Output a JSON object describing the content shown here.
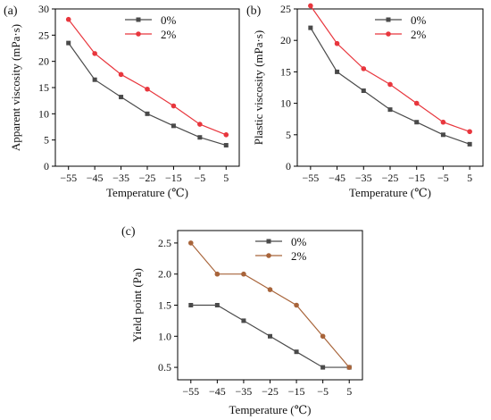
{
  "chart_data": [
    {
      "type": "line",
      "panel_label": "(a)",
      "x": [
        -55,
        -45,
        -35,
        -25,
        -15,
        -5,
        5
      ],
      "xticks": [
        "−55",
        "−45",
        "−35",
        "−25",
        "−15",
        "−5",
        "5"
      ],
      "xlabel": "Temperature (℃)",
      "ylabel": "Apparent viscosity (mPa·s)",
      "ylim": [
        0,
        30
      ],
      "yticks": [
        "0",
        "5",
        "10",
        "15",
        "20",
        "25",
        "30"
      ],
      "legend_position": "top-right",
      "series": [
        {
          "name": "0%",
          "color": "#4a4a4a",
          "marker": "square",
          "values": [
            23.5,
            16.5,
            13.2,
            10.0,
            7.7,
            5.5,
            4.0
          ]
        },
        {
          "name": "2%",
          "color": "#e8363d",
          "marker": "circle",
          "values": [
            28.0,
            21.5,
            17.5,
            14.7,
            11.5,
            8.0,
            6.0
          ]
        }
      ]
    },
    {
      "type": "line",
      "panel_label": "(b)",
      "x": [
        -55,
        -45,
        -35,
        -25,
        -15,
        -5,
        5
      ],
      "xticks": [
        "−55",
        "−45",
        "−35",
        "−25",
        "−15",
        "−5",
        "5"
      ],
      "xlabel": "Temperature (℃)",
      "ylabel": "Plastic viscosity (mPa·s)",
      "ylim": [
        0,
        25
      ],
      "yticks": [
        "0",
        "5",
        "10",
        "15",
        "20",
        "25"
      ],
      "legend_position": "top-right",
      "series": [
        {
          "name": "0%",
          "color": "#4a4a4a",
          "marker": "square",
          "values": [
            22.0,
            15.0,
            12.0,
            9.0,
            7.0,
            5.0,
            3.5
          ]
        },
        {
          "name": "2%",
          "color": "#e8363d",
          "marker": "circle",
          "values": [
            25.5,
            19.5,
            15.5,
            13.0,
            10.0,
            7.0,
            5.5
          ]
        }
      ]
    },
    {
      "type": "line",
      "panel_label": "(c)",
      "x": [
        -55,
        -45,
        -35,
        -25,
        -15,
        -5,
        5
      ],
      "xticks": [
        "−55",
        "−45",
        "−35",
        "−25",
        "−15",
        "−5",
        "5"
      ],
      "xlabel": "Temperature (℃)",
      "ylabel": "Yield point (Pa)",
      "ylim": [
        0.3,
        2.7
      ],
      "yticks": [
        "0.5",
        "1.0",
        "1.5",
        "2.0",
        "2.5"
      ],
      "ytick_values": [
        0.5,
        1.0,
        1.5,
        2.0,
        2.5
      ],
      "legend_position": "top-right",
      "series": [
        {
          "name": "0%",
          "color": "#4a4a4a",
          "marker": "square",
          "values": [
            1.5,
            1.5,
            1.25,
            1.0,
            0.75,
            0.5,
            0.5
          ]
        },
        {
          "name": "2%",
          "color": "#a8643a",
          "marker": "circle",
          "values": [
            2.5,
            2.0,
            2.0,
            1.75,
            1.5,
            1.0,
            0.5
          ]
        }
      ]
    }
  ]
}
